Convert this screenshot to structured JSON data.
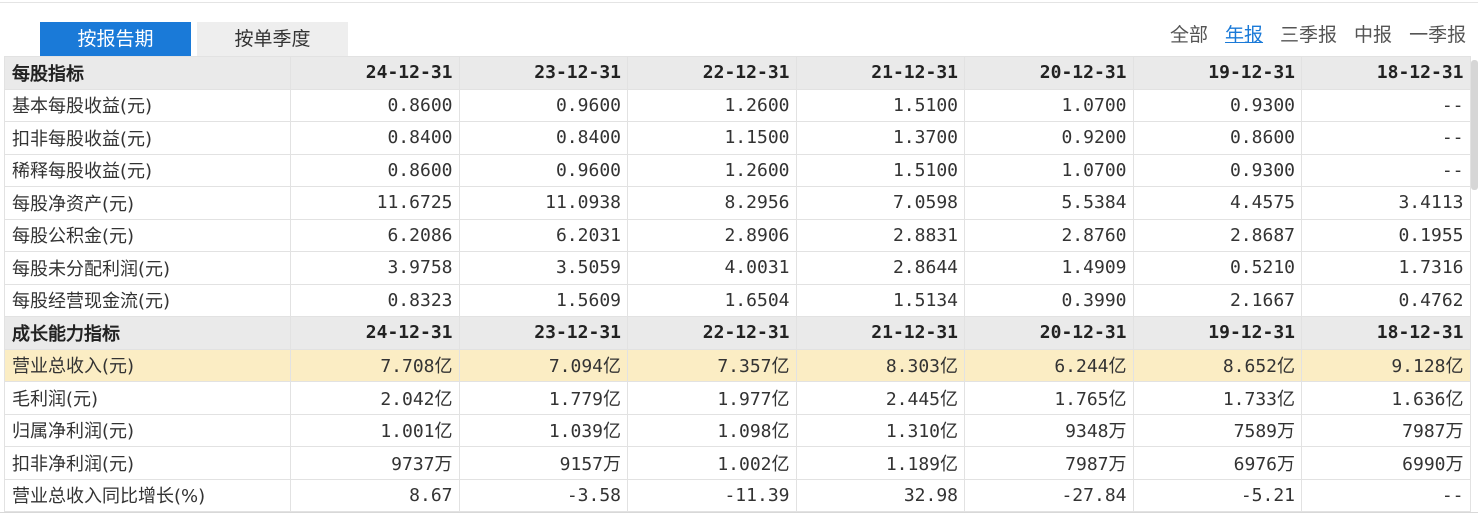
{
  "tabs": [
    {
      "label": "按报告期",
      "active": true
    },
    {
      "label": "按单季度",
      "active": false
    }
  ],
  "periods": [
    {
      "label": "全部",
      "selected": false
    },
    {
      "label": "年报",
      "selected": true
    },
    {
      "label": "三季报",
      "selected": false
    },
    {
      "label": "中报",
      "selected": false
    },
    {
      "label": "一季报",
      "selected": false
    }
  ],
  "colors": {
    "accent": "#1a7ad8",
    "highlight_row": "#fbedc4",
    "section_header": "#eaeaea"
  },
  "table": {
    "rows": [
      {
        "kind": "section",
        "cells": [
          "每股指标",
          "24-12-31",
          "23-12-31",
          "22-12-31",
          "21-12-31",
          "20-12-31",
          "19-12-31",
          "18-12-31"
        ]
      },
      {
        "kind": "data",
        "cells": [
          "基本每股收益(元)",
          "0.8600",
          "0.9600",
          "1.2600",
          "1.5100",
          "1.0700",
          "0.9300",
          "--"
        ]
      },
      {
        "kind": "data",
        "cells": [
          "扣非每股收益(元)",
          "0.8400",
          "0.8400",
          "1.1500",
          "1.3700",
          "0.9200",
          "0.8600",
          "--"
        ]
      },
      {
        "kind": "data",
        "cells": [
          "稀释每股收益(元)",
          "0.8600",
          "0.9600",
          "1.2600",
          "1.5100",
          "1.0700",
          "0.9300",
          "--"
        ]
      },
      {
        "kind": "data",
        "cells": [
          "每股净资产(元)",
          "11.6725",
          "11.0938",
          "8.2956",
          "7.0598",
          "5.5384",
          "4.4575",
          "3.4113"
        ]
      },
      {
        "kind": "data",
        "cells": [
          "每股公积金(元)",
          "6.2086",
          "6.2031",
          "2.8906",
          "2.8831",
          "2.8760",
          "2.8687",
          "0.1955"
        ]
      },
      {
        "kind": "data",
        "cells": [
          "每股未分配利润(元)",
          "3.9758",
          "3.5059",
          "4.0031",
          "2.8644",
          "1.4909",
          "0.5210",
          "1.7316"
        ]
      },
      {
        "kind": "data",
        "cells": [
          "每股经营现金流(元)",
          "0.8323",
          "1.5609",
          "1.6504",
          "1.5134",
          "0.3990",
          "2.1667",
          "0.4762"
        ]
      },
      {
        "kind": "section",
        "cells": [
          "成长能力指标",
          "24-12-31",
          "23-12-31",
          "22-12-31",
          "21-12-31",
          "20-12-31",
          "19-12-31",
          "18-12-31"
        ]
      },
      {
        "kind": "highlight",
        "cells": [
          "营业总收入(元)",
          "7.708亿",
          "7.094亿",
          "7.357亿",
          "8.303亿",
          "6.244亿",
          "8.652亿",
          "9.128亿"
        ]
      },
      {
        "kind": "data",
        "cells": [
          "毛利润(元)",
          "2.042亿",
          "1.779亿",
          "1.977亿",
          "2.445亿",
          "1.765亿",
          "1.733亿",
          "1.636亿"
        ]
      },
      {
        "kind": "data",
        "cells": [
          "归属净利润(元)",
          "1.001亿",
          "1.039亿",
          "1.098亿",
          "1.310亿",
          "9348万",
          "7589万",
          "7987万"
        ]
      },
      {
        "kind": "data",
        "cells": [
          "扣非净利润(元)",
          "9737万",
          "9157万",
          "1.002亿",
          "1.189亿",
          "7987万",
          "6976万",
          "6990万"
        ]
      },
      {
        "kind": "data",
        "cells": [
          "营业总收入同比增长(%)",
          "8.67",
          "-3.58",
          "-11.39",
          "32.98",
          "-27.84",
          "-5.21",
          "--"
        ]
      }
    ]
  }
}
